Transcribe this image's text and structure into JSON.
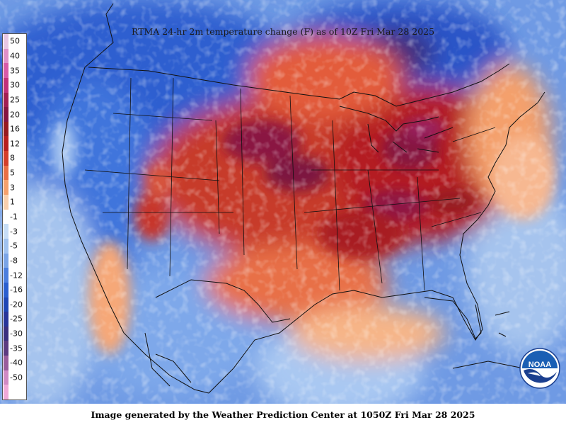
{
  "title": "RTMA 24-hr 2m temperature change (F) as of 10Z Fri Mar 28 2025",
  "credit": "Image generated by the Weather Prediction Center at 1050Z Fri Mar 28 2025",
  "logo_text": "NOAA",
  "legend": {
    "items": [
      {
        "label": "50",
        "color": "#e7c6e3"
      },
      {
        "label": "40",
        "color": "#e090c8"
      },
      {
        "label": "35",
        "color": "#d85aa8"
      },
      {
        "label": "30",
        "color": "#c2307a"
      },
      {
        "label": "25",
        "color": "#a21e52"
      },
      {
        "label": "20",
        "color": "#861540"
      },
      {
        "label": "16",
        "color": "#961a20"
      },
      {
        "label": "12",
        "color": "#b81e1e"
      },
      {
        "label": "8",
        "color": "#d43e2a"
      },
      {
        "label": "5",
        "color": "#ea6e45"
      },
      {
        "label": "3",
        "color": "#f5a06c"
      },
      {
        "label": "1",
        "color": "#f9cfad"
      },
      {
        "label": "-1",
        "color": "#ffffff"
      },
      {
        "label": "-3",
        "color": "#c7ddf6"
      },
      {
        "label": "-5",
        "color": "#a0c2ef"
      },
      {
        "label": "-8",
        "color": "#7aa4e6"
      },
      {
        "label": "-12",
        "color": "#4b7ede"
      },
      {
        "label": "-16",
        "color": "#2a5fcf"
      },
      {
        "label": "-20",
        "color": "#1e47b5"
      },
      {
        "label": "-25",
        "color": "#28359a"
      },
      {
        "label": "-30",
        "color": "#3b2f7e"
      },
      {
        "label": "-35",
        "color": "#5c3b80"
      },
      {
        "label": "-40",
        "color": "#9a5d9c"
      },
      {
        "label": "-50",
        "color": "#d08ac4"
      },
      {
        "label": "",
        "color": "#f0a8d8"
      }
    ]
  }
}
